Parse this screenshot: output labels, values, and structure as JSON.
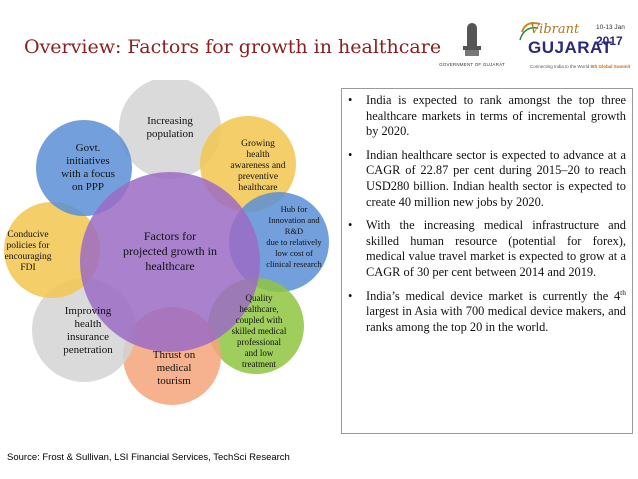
{
  "title": "Overview: Factors for growth in healthcare",
  "logos": {
    "emblem_caption": "GOVERNMENT OF GUJARAT",
    "event_brand_script": "Vibrant",
    "event_brand_name": "GUJARAT",
    "event_dates": "10-13 Jan",
    "event_year": "2017",
    "event_tagline": "Connecting India to the World",
    "event_edition": "8th Global Summit"
  },
  "diagram": {
    "center": "Factors for projected growth in healthcare",
    "factors": [
      {
        "label": "Increasing population",
        "color": "#d4d4d4"
      },
      {
        "label": "Growing health awareness and preventive healthcare",
        "color": "#f2c54d"
      },
      {
        "label": "Hub for Innovation and R&D due to relatively low cost of clinical research",
        "color": "#5b8fd6"
      },
      {
        "label": "Quality healthcare, coupled with skilled medical professional and low treatment",
        "color": "#8fc63f"
      },
      {
        "label": "Thrust on medical tourism",
        "color": "#f4a37a"
      },
      {
        "label": "Improving health insurance penetration",
        "color": "#d4d4d4"
      },
      {
        "label": "Conducive policies for encouraging FDI",
        "color": "#f2c54d"
      },
      {
        "label": "Govt. initiatives with a focus on PPP",
        "color": "#5b8fd6"
      }
    ],
    "center_color": "#9b6bc4"
  },
  "bullets": [
    {
      "text": "India is expected to rank amongst the top three healthcare markets in terms of incremental growth by 2020."
    },
    {
      "text": "Indian healthcare sector is expected to advance at a CAGR of 22.87 per cent during 2015–20 to reach USD280 billion. Indian health sector is expected to create 40 million new jobs by 2020."
    },
    {
      "text": "With the increasing medical infrastructure and skilled human resource (potential for forex),   medical value travel market is expected to grow at a CAGR of 30 per cent between 2014 and 2019."
    },
    {
      "pre": "India’s medical device market is currently the 4",
      "sup": "th",
      "post": " largest in Asia with 700 medical device makers, and ranks among the top 20 in the world."
    }
  ],
  "source": "Source: Frost & Sullivan, LSI Financial Services, TechSci Research"
}
